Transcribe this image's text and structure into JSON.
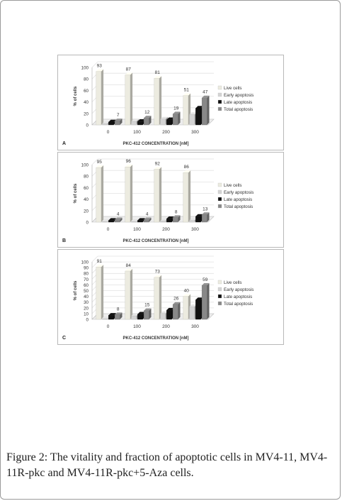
{
  "caption": {
    "label": "Figure 2:",
    "text": " The vitality and fraction of apoptotic cells in MV4-11, MV4-11R-pkc and MV4-11R-pkc+5-Aza cells."
  },
  "colors": {
    "live": "#ecebe0",
    "early": "#d4d4d4",
    "late": "#111111",
    "total": "#888888"
  },
  "chart_data": [
    {
      "type": "bar",
      "panel_label": "A",
      "xlabel": "PKC-412 CONCENTRATION [nM]",
      "ylabel": "% of cells",
      "ylim": [
        0,
        100
      ],
      "yticks": [
        0,
        20,
        40,
        60,
        80,
        100
      ],
      "categories": [
        "0",
        "100",
        "200",
        "300"
      ],
      "legend_position": "right",
      "series": [
        {
          "name": "Live cells",
          "values": [
            93,
            87,
            81,
            51
          ],
          "labels": [
            "93",
            "87",
            "81",
            "51"
          ]
        },
        {
          "name": "Early apoptosis",
          "values": [
            2,
            6,
            10,
            18
          ],
          "labels": [
            "",
            "",
            "",
            ""
          ]
        },
        {
          "name": "Late apoptosis",
          "values": [
            5,
            6,
            9,
            29
          ],
          "labels": [
            "",
            "",
            "",
            ""
          ]
        },
        {
          "name": "Total apoptosis",
          "values": [
            7,
            12,
            19,
            47
          ],
          "labels": [
            "7",
            "12",
            "19",
            "47"
          ]
        }
      ]
    },
    {
      "type": "bar",
      "panel_label": "B",
      "xlabel": "PKC-412 CONCENTRATION [nM]",
      "ylabel": "% of cells",
      "ylim": [
        0,
        100
      ],
      "yticks": [
        0,
        20,
        40,
        60,
        80,
        100
      ],
      "categories": [
        "0",
        "100",
        "200",
        "300"
      ],
      "legend_position": "right",
      "series": [
        {
          "name": "Live cells",
          "values": [
            95,
            96,
            92,
            86
          ],
          "labels": [
            "95",
            "96",
            "92",
            "86"
          ]
        },
        {
          "name": "Early apoptosis",
          "values": [
            1,
            1,
            2,
            3
          ],
          "labels": [
            "",
            "",
            "",
            ""
          ]
        },
        {
          "name": "Late apoptosis",
          "values": [
            3,
            3,
            6,
            10
          ],
          "labels": [
            "",
            "",
            "",
            ""
          ]
        },
        {
          "name": "Total apoptosis",
          "values": [
            4,
            4,
            8,
            13
          ],
          "labels": [
            "4",
            "4",
            "8",
            "13"
          ]
        }
      ]
    },
    {
      "type": "bar",
      "panel_label": "C",
      "xlabel": "PKC-412 CONCENTRATION [nM]",
      "ylabel": "% of cells",
      "ylim": [
        0,
        100
      ],
      "yticks": [
        0,
        10,
        20,
        30,
        40,
        50,
        60,
        70,
        80,
        90,
        100
      ],
      "categories": [
        "0",
        "100",
        "200",
        "300"
      ],
      "legend_position": "right",
      "series": [
        {
          "name": "Live cells",
          "values": [
            91,
            84,
            73,
            40
          ],
          "labels": [
            "91",
            "84",
            "73",
            "40"
          ]
        },
        {
          "name": "Early apoptosis",
          "values": [
            1,
            6,
            10,
            22
          ],
          "labels": [
            "",
            "",
            "",
            ""
          ]
        },
        {
          "name": "Late apoptosis",
          "values": [
            7,
            9,
            16,
            34
          ],
          "labels": [
            "",
            "",
            "",
            ""
          ]
        },
        {
          "name": "Total apoptosis",
          "values": [
            8,
            15,
            26,
            59
          ],
          "labels": [
            "8",
            "15",
            "26",
            "59"
          ]
        }
      ]
    }
  ]
}
